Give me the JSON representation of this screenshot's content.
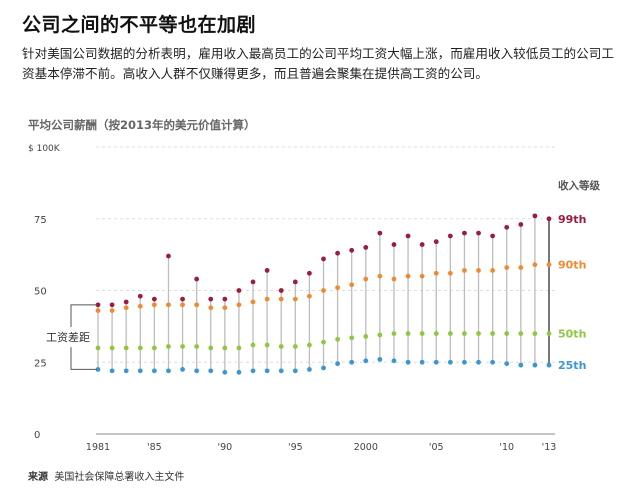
{
  "header": {
    "title": "公司之间的不平等也在加剧",
    "subtitle": "针对美国公司数据的分析表明，雇用收入最高员工的公司平均工资大幅上涨，而雇用收入较低员工的公司工资基本停滞不前。高收入人群不仅赚得更多，而且普遍会聚集在提供高工资的公司。"
  },
  "source": {
    "label": "来源",
    "text": "美国社会保障总署收入主文件"
  },
  "chart_data": {
    "type": "scatter",
    "title": "平均公司薪酬（按2013年的美元价值计算）",
    "y_tick_labels": [
      "0",
      "25",
      "50",
      "75",
      "$ 100K"
    ],
    "y_ticks": [
      0,
      25,
      50,
      75,
      100
    ],
    "ylim": [
      0,
      100
    ],
    "x": [
      1981,
      1982,
      1983,
      1984,
      1985,
      1986,
      1987,
      1988,
      1989,
      1990,
      1991,
      1992,
      1993,
      1994,
      1995,
      1996,
      1997,
      1998,
      1999,
      2000,
      2001,
      2002,
      2003,
      2004,
      2005,
      2006,
      2007,
      2008,
      2009,
      2010,
      2011,
      2012,
      2013
    ],
    "x_tick_labels": [
      "1981",
      "'85",
      "'90",
      "'95",
      "2000",
      "'05",
      "'10",
      "'13"
    ],
    "x_ticks": [
      1981,
      1985,
      1990,
      1995,
      2000,
      2005,
      2010,
      2013
    ],
    "xlim": [
      1981,
      2013
    ],
    "legend_title": "收入等级",
    "gap_label": "工资差距",
    "series": [
      {
        "name": "99th",
        "color": "#9b1c3f",
        "values": [
          45,
          45,
          46,
          48,
          47,
          62,
          47,
          54,
          47,
          47,
          50,
          53,
          57,
          50,
          53,
          56,
          61,
          63,
          64,
          65,
          70,
          66,
          69,
          66,
          67,
          69,
          70,
          70,
          69,
          72,
          73,
          76,
          75
        ]
      },
      {
        "name": "90th",
        "color": "#ef8a33",
        "values": [
          43,
          43,
          44,
          44.5,
          45,
          45,
          45,
          45,
          44,
          44,
          45,
          46,
          47,
          47,
          47,
          48,
          50,
          51,
          52,
          54,
          55,
          54,
          55,
          55,
          56,
          56,
          57,
          57,
          57,
          58,
          58,
          59,
          59
        ]
      },
      {
        "name": "50th",
        "color": "#8fc740",
        "values": [
          30,
          30,
          30,
          30,
          30,
          30.5,
          30.5,
          30.5,
          30,
          30,
          30,
          31,
          31,
          30.5,
          30.5,
          31,
          32,
          33,
          33.5,
          34,
          34.5,
          35,
          35,
          35,
          35,
          35,
          35,
          35,
          35,
          35,
          35,
          35,
          35
        ]
      },
      {
        "name": "25th",
        "color": "#3b97d3",
        "values": [
          22.5,
          22,
          22,
          22,
          22,
          22,
          22.5,
          22,
          22,
          21.5,
          21.5,
          22,
          22,
          22,
          22,
          22.5,
          23,
          24.5,
          25,
          25.5,
          26,
          25.5,
          25,
          25,
          25,
          25,
          25,
          25,
          25,
          24.5,
          24,
          24,
          24
        ]
      }
    ]
  }
}
